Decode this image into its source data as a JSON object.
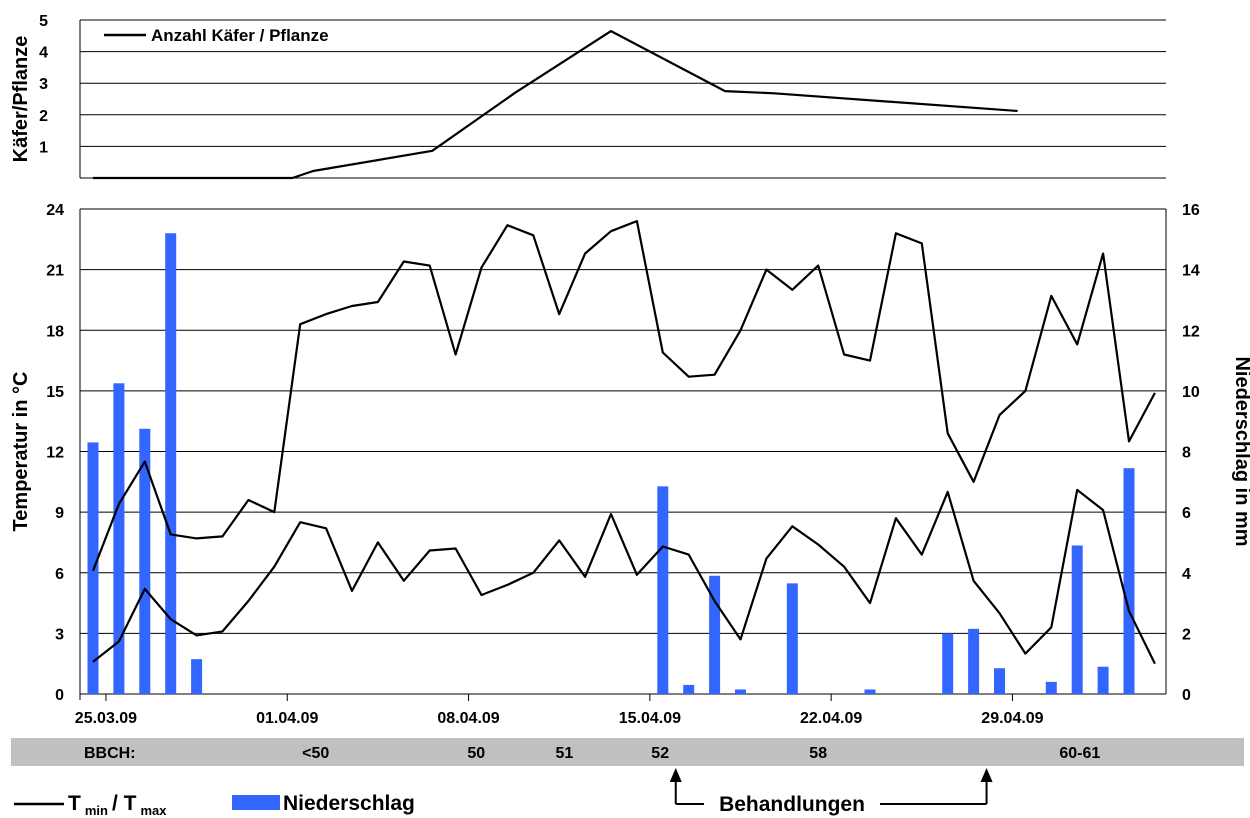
{
  "chart_data": [
    {
      "type": "line",
      "ylabel": "Käfer/Pflanze",
      "ylim": [
        0,
        5
      ],
      "yticks": [
        1,
        2,
        3,
        4,
        5
      ],
      "legend": "Anzahl Käfer / Pflanze",
      "legend_position": "top-left",
      "grid": true,
      "series": [
        {
          "name": "Anzahl Käfer / Pflanze",
          "points": [
            {
              "x": 0,
              "y": 0
            },
            {
              "x": 7.7,
              "y": 0
            },
            {
              "x": 8.5,
              "y": 0.22
            },
            {
              "x": 13.1,
              "y": 0.86
            },
            {
              "x": 16.3,
              "y": 2.7
            },
            {
              "x": 20.0,
              "y": 4.65
            },
            {
              "x": 24.4,
              "y": 2.75
            },
            {
              "x": 26.3,
              "y": 2.68
            },
            {
              "x": 35.7,
              "y": 2.12
            }
          ]
        }
      ]
    },
    {
      "type": "bar+line",
      "x_tick_labels": [
        {
          "x": 1,
          "label": "25.03.09"
        },
        {
          "x": 8,
          "label": "01.04.09"
        },
        {
          "x": 15,
          "label": "08.04.09"
        },
        {
          "x": 22,
          "label": "15.04.09"
        },
        {
          "x": 29,
          "label": "22.04.09"
        },
        {
          "x": 36,
          "label": "29.04.09"
        }
      ],
      "xlim": [
        0,
        42.3
      ],
      "ylabel_left": "Temperatur in °C",
      "ylim_left": [
        0,
        24
      ],
      "yticks_left": [
        0,
        3,
        6,
        9,
        12,
        15,
        18,
        21,
        24
      ],
      "ylabel_right": "Niederschlag in mm",
      "ylim_right": [
        0,
        16
      ],
      "yticks_right": [
        0,
        2,
        4,
        6,
        8,
        10,
        12,
        14,
        16
      ],
      "grid": true,
      "bar_color": "#3366ff",
      "precipitation": {
        "name": "Niederschlag",
        "x": [
          0,
          1,
          2,
          3,
          4,
          22,
          23,
          24,
          25,
          27,
          30,
          33,
          34,
          35,
          37,
          38,
          39,
          40
        ],
        "values": [
          8.3,
          10.25,
          8.75,
          15.2,
          1.15,
          6.85,
          0.3,
          3.9,
          0.15,
          3.65,
          0.15,
          2.0,
          2.15,
          0.85,
          0.4,
          4.9,
          0.9,
          7.45
        ]
      },
      "temperature": {
        "name": "T min / T max",
        "t_max": [
          6.1,
          9.4,
          11.5,
          7.9,
          7.7,
          7.8,
          9.6,
          9.0,
          18.3,
          18.8,
          19.2,
          19.4,
          21.4,
          21.2,
          16.8,
          21.1,
          23.2,
          22.7,
          18.8,
          21.8,
          22.9,
          23.4,
          16.9,
          15.7,
          15.8,
          18.0,
          21.0,
          20.0,
          21.2,
          16.8,
          16.5,
          22.8,
          22.3,
          12.9,
          10.5,
          13.8,
          15.0,
          19.7,
          17.3,
          21.8,
          12.5,
          14.9
        ],
        "t_min": [
          1.6,
          2.6,
          5.2,
          3.7,
          2.9,
          3.1,
          4.6,
          6.3,
          8.5,
          8.2,
          5.1,
          7.5,
          5.6,
          7.1,
          7.2,
          4.9,
          5.4,
          6.0,
          7.6,
          5.8,
          8.9,
          5.9,
          7.3,
          6.9,
          4.6,
          2.7,
          6.7,
          8.3,
          7.4,
          6.3,
          4.5,
          8.7,
          6.9,
          10.0,
          5.6,
          4.0,
          2.0,
          3.3,
          10.1,
          9.1,
          4.1,
          1.5
        ]
      }
    }
  ],
  "bbch": {
    "label": "BBCH:",
    "stages": [
      {
        "x": 8.6,
        "label": "<50"
      },
      {
        "x": 14.8,
        "label": "50"
      },
      {
        "x": 18.2,
        "label": "51"
      },
      {
        "x": 21.9,
        "label": "52"
      },
      {
        "x": 28.0,
        "label": "58"
      },
      {
        "x": 38.1,
        "label": "60-61"
      }
    ]
  },
  "legend": {
    "temp_T": "T",
    "temp_min": "min",
    "temp_sep": "/ T",
    "temp_max": "max",
    "precip": "Niederschlag"
  },
  "annotation": {
    "label": "Behandlungen",
    "arrow_x": [
      22.5,
      34.5
    ]
  }
}
